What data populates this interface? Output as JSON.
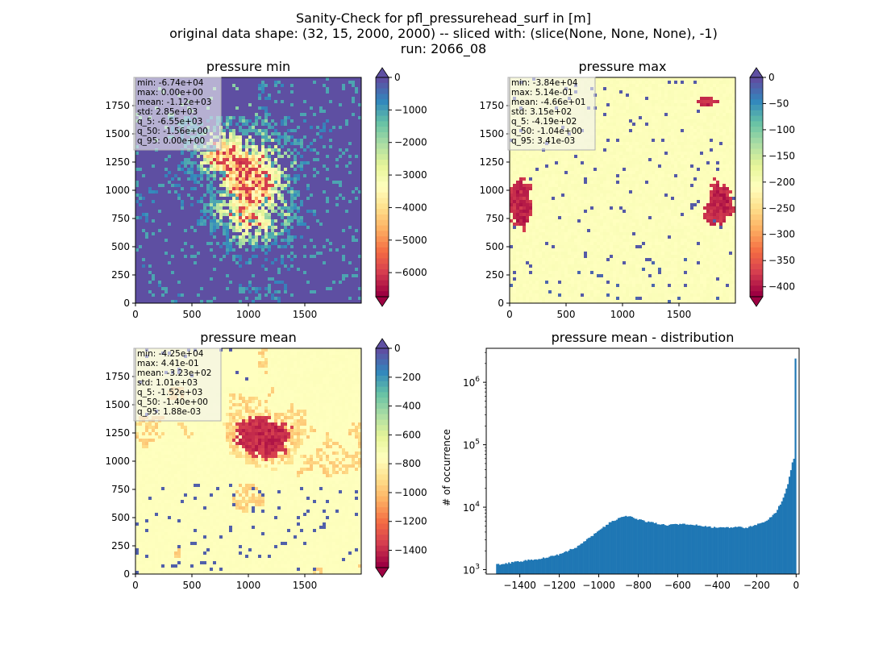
{
  "figure": {
    "title_lines": [
      "Sanity-Check for pfl_pressurehead_surf in [m]",
      "original data shape: (32, 15, 2000, 2000) -- sliced with: (slice(None, None, None), -1)",
      "run: 2066_08"
    ]
  },
  "chart_data": [
    {
      "type": "heatmap",
      "title": "pressure min",
      "xlabel": "",
      "ylabel": "",
      "xlim": [
        0,
        2000
      ],
      "ylim": [
        0,
        2000
      ],
      "xticks": [
        "0",
        "500",
        "1000",
        "1500"
      ],
      "yticks": [
        "0",
        "250",
        "500",
        "750",
        "1000",
        "1250",
        "1500",
        "1750"
      ],
      "colormap": "Spectral",
      "colorbar": {
        "range": [
          -6740,
          0
        ],
        "extend": "both",
        "ticks": [
          "0",
          "−1000",
          "−2000",
          "−3000",
          "−4000",
          "−5000",
          "−6000"
        ]
      },
      "stats": [
        "min: -6.74e+04",
        "max: 0.00e+00",
        "mean: -1.12e+03",
        "std: 2.85e+03",
        "q_5: -6.55e+03",
        "q_50: -1.56e+00",
        "q_95: 0.00e+00"
      ]
    },
    {
      "type": "heatmap",
      "title": "pressure max",
      "xlabel": "",
      "ylabel": "",
      "xlim": [
        0,
        2000
      ],
      "ylim": [
        0,
        2000
      ],
      "xticks": [
        "0",
        "500",
        "1000",
        "1500"
      ],
      "yticks": [
        "0",
        "250",
        "500",
        "750",
        "1000",
        "1250",
        "1500",
        "1750"
      ],
      "colormap": "Spectral",
      "colorbar": {
        "range": [
          -419,
          0
        ],
        "extend": "both",
        "ticks": [
          "0",
          "−50",
          "−100",
          "−150",
          "−200",
          "−250",
          "−300",
          "−350",
          "−400"
        ]
      },
      "stats": [
        "min: -3.84e+04",
        "max: 5.14e-01",
        "mean: -4.66e+01",
        "std: 3.15e+02",
        "q_5: -4.19e+02",
        "q_50: -1.04e+00",
        "q_95: 3.41e-03"
      ]
    },
    {
      "type": "heatmap",
      "title": "pressure mean",
      "xlabel": "",
      "ylabel": "",
      "xlim": [
        0,
        2000
      ],
      "ylim": [
        0,
        2000
      ],
      "xticks": [
        "0",
        "500",
        "1000",
        "1500"
      ],
      "yticks": [
        "0",
        "250",
        "500",
        "750",
        "1000",
        "1250",
        "1500",
        "1750"
      ],
      "colormap": "Spectral",
      "colorbar": {
        "range": [
          -1520,
          0
        ],
        "extend": "both",
        "ticks": [
          "0",
          "−200",
          "−400",
          "−600",
          "−800",
          "−1000",
          "−1200",
          "−1400"
        ]
      },
      "stats": [
        "min: -4.25e+04",
        "max: 4.41e-01",
        "mean: -3.23e+02",
        "std: 1.01e+03",
        "q_5: -1.52e+03",
        "q_50: -1.40e+00",
        "q_95: 1.88e-03"
      ]
    },
    {
      "type": "bar",
      "title": "pressure mean - distribution",
      "xlabel": "",
      "ylabel": "# of occurrence",
      "yscale": "log",
      "xlim": [
        -1570,
        15
      ],
      "ylim": [
        850,
        3500000
      ],
      "xticks": [
        -1400,
        -1200,
        -1000,
        -800,
        -600,
        -400,
        -200,
        0
      ],
      "xtick_labels": [
        "−1400",
        "−1200",
        "−1000",
        "−800",
        "−600",
        "−400",
        "−200",
        "0"
      ],
      "ytick_labels": [
        "10^3",
        "10^4",
        "10^5",
        "10^6"
      ],
      "color": "#1f77b4",
      "bin_range": [
        -1520,
        0
      ],
      "series": [
        {
          "x": [
            -1520,
            -1400,
            -1300,
            -1200,
            -1100,
            -1000,
            -950,
            -900,
            -870,
            -840,
            -800,
            -750,
            -700,
            -650,
            -600,
            -550,
            -500,
            -450,
            -400,
            -350,
            -300,
            -250,
            -200,
            -150,
            -100,
            -60,
            -40,
            -20,
            -12,
            -6,
            -3,
            -1,
            0
          ],
          "values": [
            1200,
            1350,
            1500,
            1750,
            2400,
            4200,
            5500,
            6600,
            7200,
            7000,
            6400,
            5800,
            5400,
            5200,
            5300,
            5400,
            5100,
            4900,
            4700,
            4700,
            4800,
            4700,
            5300,
            6000,
            8500,
            15000,
            25000,
            50000,
            60000,
            45000,
            30000,
            2400000,
            2400000
          ]
        }
      ]
    }
  ]
}
